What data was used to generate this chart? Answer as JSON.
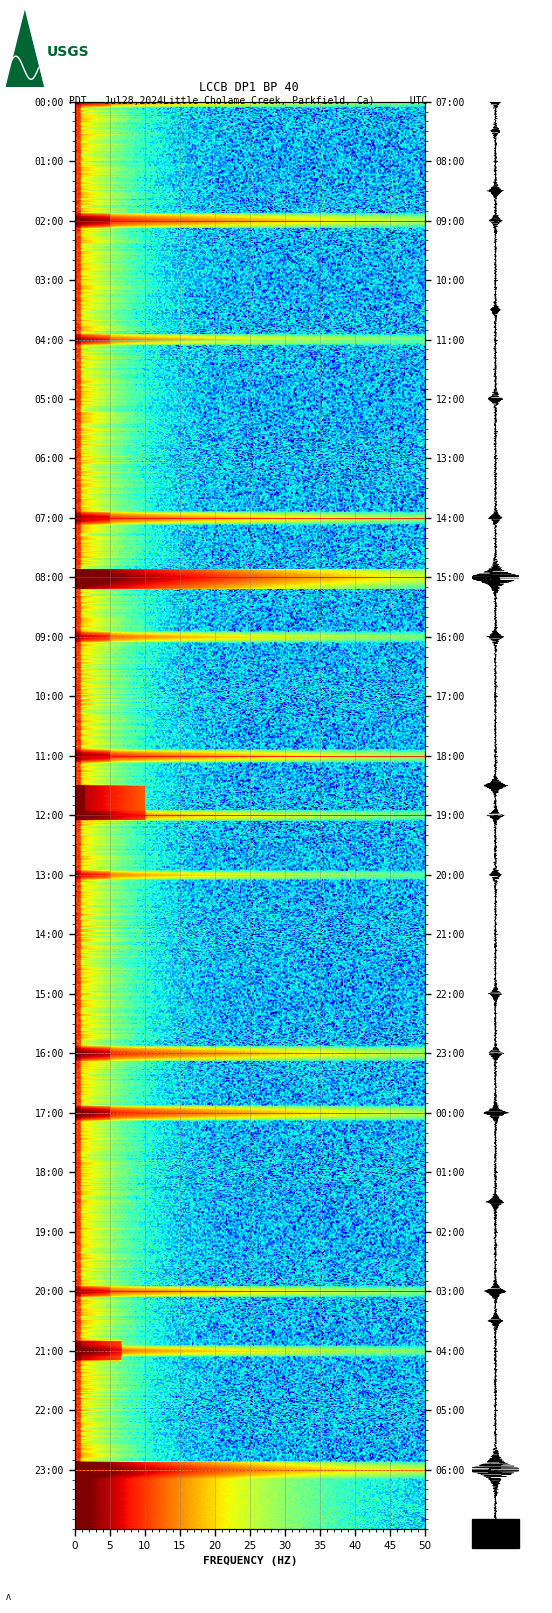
{
  "title_line1": "LCCB DP1 BP 40",
  "title_line2": "PDT   Jul28,2024Little Cholame Creek, Parkfield, Ca)      UTC",
  "xlabel": "FREQUENCY (HZ)",
  "freq_min": 0,
  "freq_max": 50,
  "freq_ticks": [
    0,
    5,
    10,
    15,
    20,
    25,
    30,
    35,
    40,
    45,
    50
  ],
  "time_hours_left": [
    "00:00",
    "01:00",
    "02:00",
    "03:00",
    "04:00",
    "05:00",
    "06:00",
    "07:00",
    "08:00",
    "09:00",
    "10:00",
    "11:00",
    "12:00",
    "13:00",
    "14:00",
    "15:00",
    "16:00",
    "17:00",
    "18:00",
    "19:00",
    "20:00",
    "21:00",
    "22:00",
    "23:00"
  ],
  "time_hours_right": [
    "07:00",
    "08:00",
    "09:00",
    "10:00",
    "11:00",
    "12:00",
    "13:00",
    "14:00",
    "15:00",
    "16:00",
    "17:00",
    "18:00",
    "19:00",
    "20:00",
    "21:00",
    "22:00",
    "23:00",
    "00:00",
    "01:00",
    "02:00",
    "03:00",
    "04:00",
    "05:00",
    "06:00"
  ],
  "background_color": "#ffffff",
  "spectrogram_bg": "#000080",
  "colormap": "jet",
  "fig_width": 5.52,
  "fig_height": 16.13,
  "usgs_green": "#006633",
  "grid_color": "#808080",
  "grid_alpha": 0.5,
  "event_rows": [
    0,
    120,
    240,
    420,
    480,
    540,
    660,
    720,
    780,
    960,
    1020,
    1200,
    1260,
    1380
  ],
  "event_strengths": [
    0.6,
    0.9,
    0.5,
    0.7,
    1.0,
    0.5,
    0.8,
    0.5,
    0.4,
    0.85,
    0.95,
    0.6,
    0.5,
    1.0
  ],
  "horiz_line_rows_red": [
    0,
    120,
    420,
    480,
    660,
    720,
    960,
    1020,
    1200,
    1380
  ],
  "horiz_line_rows_cyan": [
    240,
    540,
    780,
    1260
  ],
  "horiz_line_rows_yellow": [
    1380
  ],
  "seismo_events": [
    0.0,
    0.5,
    1.5,
    2.0,
    3.5,
    5.0,
    7.0,
    8.0,
    9.0,
    11.5,
    12.0,
    13.0,
    15.0,
    16.0,
    17.0,
    18.5,
    20.0,
    20.5,
    23.0
  ],
  "seismo_amps": [
    0.4,
    0.3,
    0.5,
    0.4,
    0.3,
    0.5,
    0.4,
    1.0,
    0.5,
    0.8,
    0.5,
    0.4,
    0.4,
    0.5,
    0.8,
    0.6,
    0.7,
    0.5,
    1.0
  ]
}
